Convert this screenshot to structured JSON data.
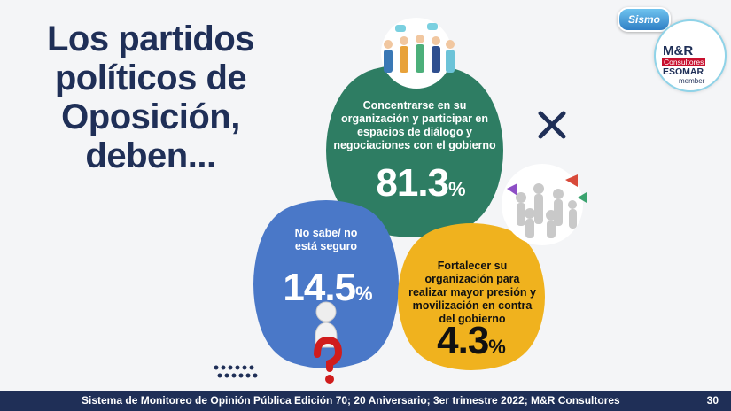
{
  "title": "Los partidos políticos de Oposición, deben...",
  "options": [
    {
      "label": "Concentrarse en su organización y participar en espacios de diálogo y negociaciones con el gobierno",
      "value": "81.3",
      "unit": "%",
      "color": "#2e7d63"
    },
    {
      "label": "No sabe/ no está seguro",
      "value": "14.5",
      "unit": "%",
      "color": "#4a78c8"
    },
    {
      "label": "Fortalecer su organización para realizar mayor presión y movilización en contra del gobierno",
      "value": "4.3",
      "unit": "%",
      "color": "#f0b21e"
    }
  ],
  "logos": {
    "sismo": "Sismo",
    "mr": "M&R",
    "mr_sub": "Consultores",
    "esomar": "ESOMAR",
    "member": "member"
  },
  "footer": {
    "text": "Sistema de Monitoreo de Opinión Pública Edición 70; 20 Aniversario; 3er trimestre 2022; M&R Consultores",
    "page": "30"
  },
  "colors": {
    "navy": "#1f2f57",
    "accent_red": "#c8102e"
  },
  "icons": [
    "people-group-icon",
    "crowd-megaphone-icon",
    "question-thinker-icon",
    "cross-decoration-icon",
    "dots-decoration-icon"
  ]
}
